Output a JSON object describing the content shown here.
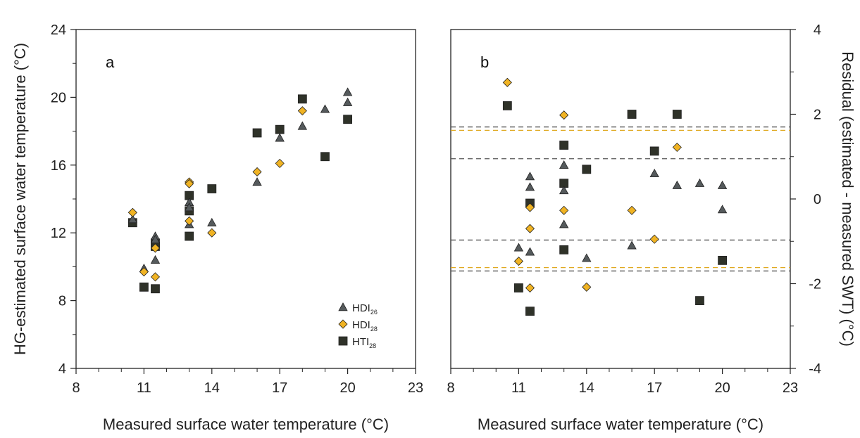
{
  "colors": {
    "hdi26": "#555a5c",
    "hdi28": "#f0b323",
    "hti28": "#2f3229",
    "dash_gray": "#555555",
    "dash_yellow": "#e0a920"
  },
  "chart_data": [
    {
      "panel": "a",
      "type": "scatter",
      "xlabel": "Measured surface water temperature (°C)",
      "ylabel": "HG-estimated surface water temperature (°C)",
      "xlim": [
        8,
        23
      ],
      "ylim": [
        4,
        24
      ],
      "xticks": [
        8,
        11,
        14,
        17,
        20,
        23
      ],
      "yticks": [
        4,
        8,
        12,
        16,
        20,
        24
      ],
      "grid": false,
      "legend_position": "bottom-right",
      "legend": [
        {
          "base": "HDI",
          "sub": "26",
          "series": "hdi26"
        },
        {
          "base": "HDI",
          "sub": "28",
          "series": "hdi28"
        },
        {
          "base": "HTI",
          "sub": "28",
          "series": "hti28"
        }
      ],
      "series": [
        {
          "key": "hdi26",
          "marker": "triangle",
          "points": [
            [
              10.5,
              12.8
            ],
            [
              11,
              9.9
            ],
            [
              11.5,
              11.8
            ],
            [
              11.5,
              11.6
            ],
            [
              11.5,
              10.4
            ],
            [
              13,
              13.8
            ],
            [
              13,
              13.5
            ],
            [
              13,
              12.5
            ],
            [
              14,
              12.6
            ],
            [
              16,
              15
            ],
            [
              17,
              17.6
            ],
            [
              18,
              18.3
            ],
            [
              19,
              19.3
            ],
            [
              20,
              20.3
            ],
            [
              20,
              19.7
            ]
          ]
        },
        {
          "key": "hdi28",
          "marker": "diamond",
          "points": [
            [
              10.5,
              13.2
            ],
            [
              11,
              9.7
            ],
            [
              11.5,
              11.1
            ],
            [
              11.5,
              9.4
            ],
            [
              13,
              15
            ],
            [
              13,
              14.9
            ],
            [
              13,
              12.7
            ],
            [
              14,
              12
            ],
            [
              16,
              15.6
            ],
            [
              17,
              16.1
            ],
            [
              18,
              19.2
            ]
          ]
        },
        {
          "key": "hti28",
          "marker": "square",
          "points": [
            [
              10.5,
              12.6
            ],
            [
              11,
              8.8
            ],
            [
              11.5,
              11.4
            ],
            [
              11.5,
              11.2
            ],
            [
              11.5,
              8.7
            ],
            [
              13,
              14.2
            ],
            [
              13,
              13.3
            ],
            [
              13,
              11.8
            ],
            [
              14,
              14.6
            ],
            [
              16,
              17.9
            ],
            [
              17,
              18.1
            ],
            [
              18,
              19.9
            ],
            [
              19,
              16.5
            ],
            [
              20,
              18.7
            ]
          ]
        }
      ]
    },
    {
      "panel": "b",
      "type": "scatter",
      "xlabel": "Measured surface water temperature (°C)",
      "ylabel": "Residual (estimated - measured SWT) (°C)",
      "xlim": [
        8,
        23
      ],
      "ylim": [
        -4,
        4
      ],
      "xticks": [
        8,
        11,
        14,
        17,
        20,
        23
      ],
      "yticks": [
        -4,
        -2,
        0,
        2,
        4
      ],
      "yaxis_side": "right",
      "grid": false,
      "reference_lines": [
        {
          "y": 1.7,
          "color": "dash_gray"
        },
        {
          "y": 1.62,
          "color": "dash_yellow"
        },
        {
          "y": 0.95,
          "color": "dash_gray"
        },
        {
          "y": -0.97,
          "color": "dash_gray"
        },
        {
          "y": -1.62,
          "color": "dash_yellow"
        },
        {
          "y": -1.7,
          "color": "dash_gray"
        }
      ],
      "series": [
        {
          "key": "hdi26",
          "marker": "triangle",
          "points": [
            [
              11,
              -1.15
            ],
            [
              11.5,
              0.53
            ],
            [
              11.5,
              0.28
            ],
            [
              11.5,
              -1.25
            ],
            [
              13,
              0.8
            ],
            [
              13,
              0.2
            ],
            [
              13,
              -0.6
            ],
            [
              14,
              -1.4
            ],
            [
              16,
              -1.1
            ],
            [
              17,
              0.6
            ],
            [
              18,
              0.32
            ],
            [
              19,
              0.37
            ],
            [
              20,
              0.32
            ],
            [
              20,
              -0.25
            ]
          ]
        },
        {
          "key": "hdi28",
          "marker": "diamond",
          "points": [
            [
              10.5,
              2.75
            ],
            [
              11,
              -1.47
            ],
            [
              11.5,
              -0.2
            ],
            [
              11.5,
              -0.7
            ],
            [
              11.5,
              -2.1
            ],
            [
              13,
              1.98
            ],
            [
              13,
              -0.27
            ],
            [
              14,
              -2.08
            ],
            [
              16,
              -0.27
            ],
            [
              17,
              -0.95
            ],
            [
              18,
              1.22
            ]
          ]
        },
        {
          "key": "hti28",
          "marker": "square",
          "points": [
            [
              10.5,
              2.2
            ],
            [
              11,
              -2.1
            ],
            [
              11.5,
              -0.1
            ],
            [
              11.5,
              -2.65
            ],
            [
              13,
              1.27
            ],
            [
              13,
              0.37
            ],
            [
              13,
              -1.2
            ],
            [
              14,
              0.7
            ],
            [
              16,
              2
            ],
            [
              17,
              1.13
            ],
            [
              18,
              2
            ],
            [
              19,
              -2.4
            ],
            [
              20,
              -1.45
            ]
          ]
        }
      ]
    }
  ]
}
